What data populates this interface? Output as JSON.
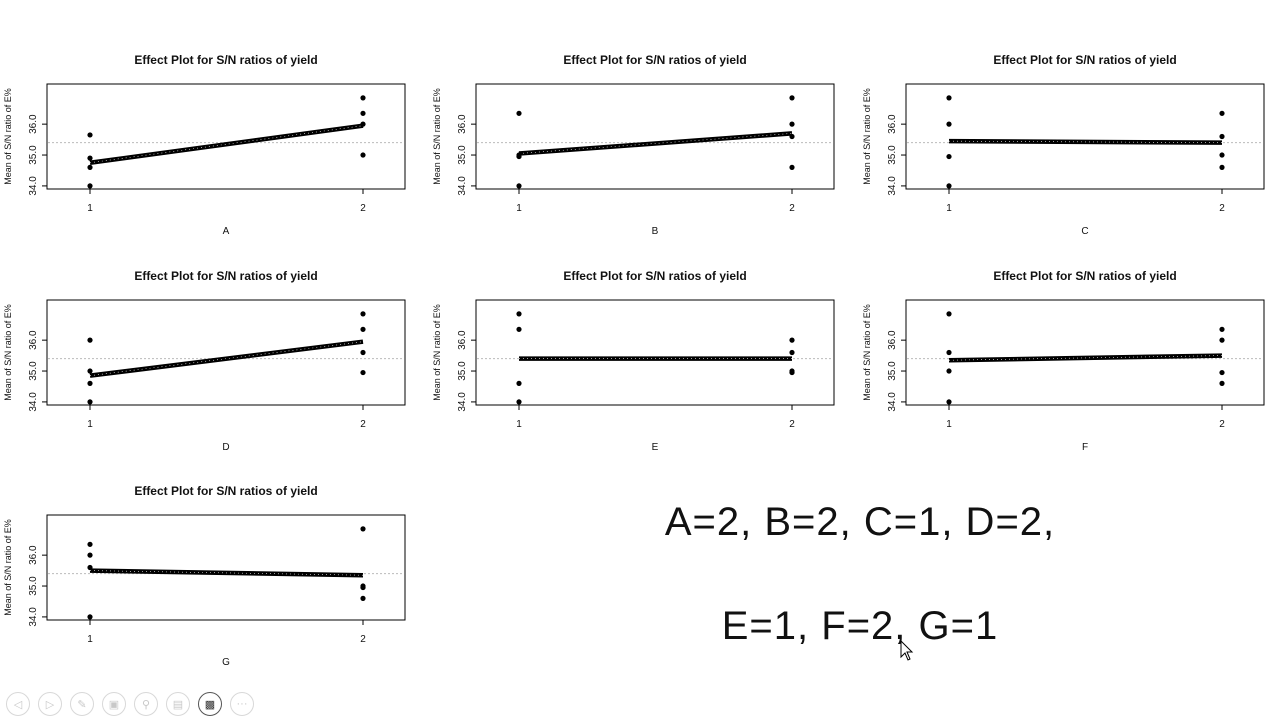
{
  "summary": {
    "line1": "A=2, B=2, C=1, D=2,",
    "line2": "E=1, F=2, G=1"
  },
  "toolbar": {
    "icons": [
      "back-icon",
      "forward-icon",
      "pen-icon",
      "slides-icon",
      "zoom-icon",
      "subtitles-icon",
      "video-icon",
      "more-icon"
    ],
    "active": "video-icon"
  },
  "chart_data": [
    {
      "type": "line",
      "title": "Effect Plot for S/N ratios of yield",
      "xlabel": "A",
      "ylabel": "Mean of S/N ratio of E%",
      "categories": [
        "1",
        "2"
      ],
      "yticks": [
        "34.0",
        "35.0",
        "36.0"
      ],
      "ylim": [
        33.9,
        37.3
      ],
      "grand_mean": 35.4,
      "means": [
        34.75,
        35.95
      ],
      "points": [
        [
          34.0,
          34.6,
          34.9,
          35.65
        ],
        [
          35.0,
          36.0,
          36.35,
          36.85
        ]
      ]
    },
    {
      "type": "line",
      "title": "Effect Plot for S/N ratios of yield",
      "xlabel": "B",
      "ylabel": "Mean of S/N ratio of E%",
      "categories": [
        "1",
        "2"
      ],
      "yticks": [
        "34.0",
        "35.0",
        "36.0"
      ],
      "ylim": [
        33.9,
        37.3
      ],
      "grand_mean": 35.4,
      "means": [
        35.05,
        35.7
      ],
      "points": [
        [
          34.0,
          34.95,
          35.0,
          36.35
        ],
        [
          34.6,
          35.6,
          36.0,
          36.85
        ]
      ]
    },
    {
      "type": "line",
      "title": "Effect Plot for S/N ratios of yield",
      "xlabel": "C",
      "ylabel": "Mean of S/N ratio of E%",
      "categories": [
        "1",
        "2"
      ],
      "yticks": [
        "34.0",
        "35.0",
        "36.0"
      ],
      "ylim": [
        33.9,
        37.3
      ],
      "grand_mean": 35.4,
      "means": [
        35.45,
        35.4
      ],
      "points": [
        [
          34.0,
          34.95,
          36.0,
          36.85
        ],
        [
          34.6,
          35.0,
          35.6,
          36.35
        ]
      ]
    },
    {
      "type": "line",
      "title": "Effect Plot for S/N ratios of yield",
      "xlabel": "D",
      "ylabel": "Mean of S/N ratio of E%",
      "categories": [
        "1",
        "2"
      ],
      "yticks": [
        "34.0",
        "35.0",
        "36.0"
      ],
      "ylim": [
        33.9,
        37.3
      ],
      "grand_mean": 35.4,
      "means": [
        34.85,
        35.95
      ],
      "points": [
        [
          34.0,
          34.6,
          35.0,
          36.0
        ],
        [
          34.95,
          35.6,
          36.35,
          36.85
        ]
      ]
    },
    {
      "type": "line",
      "title": "Effect Plot for S/N ratios of yield",
      "xlabel": "E",
      "ylabel": "Mean of S/N ratio of E%",
      "categories": [
        "1",
        "2"
      ],
      "yticks": [
        "34.0",
        "35.0",
        "36.0"
      ],
      "ylim": [
        33.9,
        37.3
      ],
      "grand_mean": 35.4,
      "means": [
        35.4,
        35.4
      ],
      "points": [
        [
          34.0,
          34.6,
          36.35,
          36.85
        ],
        [
          34.95,
          35.0,
          35.6,
          36.0
        ]
      ]
    },
    {
      "type": "line",
      "title": "Effect Plot for S/N ratios of yield",
      "xlabel": "F",
      "ylabel": "Mean of S/N ratio of E%",
      "categories": [
        "1",
        "2"
      ],
      "yticks": [
        "34.0",
        "35.0",
        "36.0"
      ],
      "ylim": [
        33.9,
        37.3
      ],
      "grand_mean": 35.4,
      "means": [
        35.35,
        35.5
      ],
      "points": [
        [
          34.0,
          35.0,
          35.6,
          36.85
        ],
        [
          34.6,
          34.95,
          36.0,
          36.35
        ]
      ]
    },
    {
      "type": "line",
      "title": "Effect Plot for S/N ratios of yield",
      "xlabel": "G",
      "ylabel": "Mean of S/N ratio of E%",
      "categories": [
        "1",
        "2"
      ],
      "yticks": [
        "34.0",
        "35.0",
        "36.0"
      ],
      "ylim": [
        33.9,
        37.3
      ],
      "grand_mean": 35.4,
      "means": [
        35.5,
        35.35
      ],
      "points": [
        [
          34.0,
          35.6,
          36.0,
          36.35
        ],
        [
          34.6,
          34.95,
          35.0,
          36.85
        ]
      ]
    }
  ]
}
